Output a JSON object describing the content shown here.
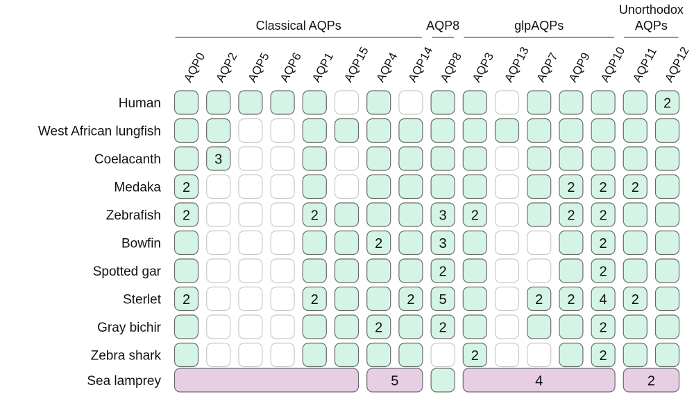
{
  "colors": {
    "present": "#d4f5e6",
    "absent": "#ffffff",
    "lamprey": "#e7cee3",
    "present_border": "#6a6a6a",
    "absent_border": "#c8c8c8",
    "group_line": "#555555"
  },
  "groups": [
    {
      "label_lines": [
        "Classical AQPs"
      ],
      "from": 0,
      "to": 7
    },
    {
      "label_lines": [
        "AQP8"
      ],
      "from": 8,
      "to": 8
    },
    {
      "label_lines": [
        "glpAQPs"
      ],
      "from": 9,
      "to": 13
    },
    {
      "label_lines": [
        "Unorthodox",
        "AQPs"
      ],
      "from": 14,
      "to": 15
    }
  ],
  "columns": [
    "AQP0",
    "AQP2",
    "AQP5",
    "AQP6",
    "AQP1",
    "AQP15",
    "AQP4",
    "AQP14",
    "AQP8",
    "AQP3",
    "AQP13",
    "AQP7",
    "AQP9",
    "AQP10",
    "AQP11",
    "AQP12"
  ],
  "rows": [
    {
      "species": "Human",
      "cells": [
        "1",
        "1",
        "1",
        "1",
        "1",
        "0",
        "1",
        "0",
        "1",
        "1",
        "0",
        "1",
        "1",
        "1",
        "1",
        "2"
      ]
    },
    {
      "species": "West African lungfish",
      "cells": [
        "1",
        "1",
        "0",
        "0",
        "1",
        "1",
        "1",
        "1",
        "1",
        "1",
        "1",
        "1",
        "1",
        "1",
        "1",
        "1"
      ]
    },
    {
      "species": "Coelacanth",
      "cells": [
        "1",
        "3",
        "0",
        "0",
        "1",
        "0",
        "1",
        "1",
        "1",
        "1",
        "0",
        "1",
        "1",
        "1",
        "1",
        "1"
      ]
    },
    {
      "species": "Medaka",
      "cells": [
        "2",
        "0",
        "0",
        "0",
        "1",
        "0",
        "1",
        "1",
        "1",
        "1",
        "0",
        "1",
        "2",
        "2",
        "2",
        "1"
      ]
    },
    {
      "species": "Zebrafish",
      "cells": [
        "2",
        "0",
        "0",
        "0",
        "2",
        "1",
        "1",
        "1",
        "3",
        "2",
        "0",
        "1",
        "2",
        "2",
        "1",
        "1"
      ]
    },
    {
      "species": "Bowfin",
      "cells": [
        "1",
        "0",
        "0",
        "0",
        "1",
        "1",
        "2",
        "1",
        "3",
        "1",
        "0",
        "0",
        "1",
        "2",
        "1",
        "1"
      ]
    },
    {
      "species": "Spotted gar",
      "cells": [
        "1",
        "0",
        "0",
        "0",
        "1",
        "1",
        "1",
        "1",
        "2",
        "1",
        "0",
        "0",
        "1",
        "2",
        "1",
        "1"
      ]
    },
    {
      "species": "Sterlet",
      "cells": [
        "2",
        "0",
        "0",
        "0",
        "2",
        "1",
        "1",
        "2",
        "5",
        "1",
        "0",
        "2",
        "2",
        "4",
        "2",
        "1"
      ]
    },
    {
      "species": "Gray bichir",
      "cells": [
        "1",
        "0",
        "0",
        "0",
        "1",
        "1",
        "2",
        "1",
        "2",
        "1",
        "0",
        "1",
        "1",
        "2",
        "1",
        "1"
      ]
    },
    {
      "species": "Zebra shark",
      "cells": [
        "1",
        "0",
        "0",
        "0",
        "1",
        "1",
        "1",
        "1",
        "0",
        "2",
        "0",
        "0",
        "1",
        "2",
        "1",
        "1"
      ]
    }
  ],
  "lamprey": {
    "species": "Sea lamprey",
    "spans": [
      {
        "from": 0,
        "to": 5,
        "label": "",
        "color": "lamprey"
      },
      {
        "from": 6,
        "to": 7,
        "label": "5",
        "color": "lamprey"
      },
      {
        "from": 8,
        "to": 8,
        "label": "",
        "color": "present"
      },
      {
        "from": 9,
        "to": 13,
        "label": "4",
        "color": "lamprey"
      },
      {
        "from": 14,
        "to": 15,
        "label": "2",
        "color": "lamprey"
      }
    ]
  }
}
